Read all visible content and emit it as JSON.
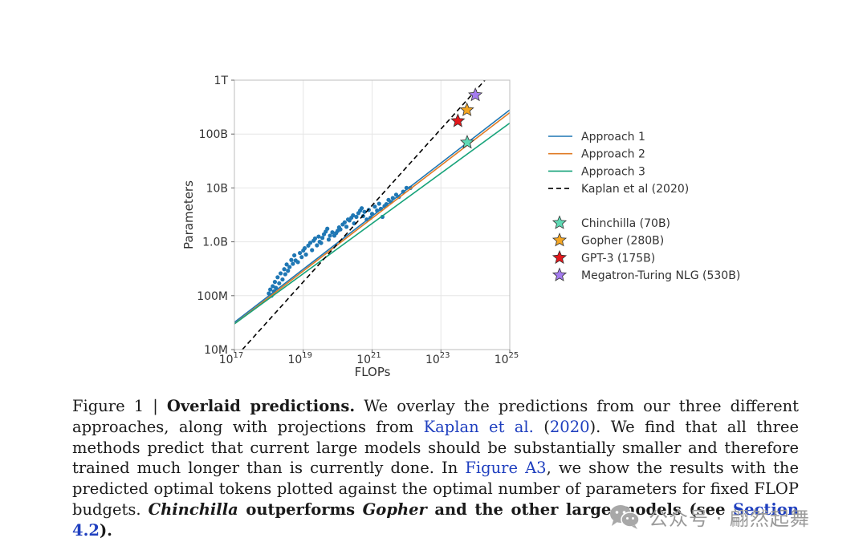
{
  "chart_data": {
    "type": "scatter",
    "xlabel": "FLOPs",
    "ylabel": "Parameters",
    "xscale": "log",
    "yscale": "log",
    "xlim": [
      1e+17,
      1e+25
    ],
    "ylim": [
      10000000.0,
      1000000000000.0
    ],
    "x_ticks": [
      {
        "value": 1e+17,
        "base": "10",
        "exp": "17"
      },
      {
        "value": 1e+19,
        "base": "10",
        "exp": "19"
      },
      {
        "value": 1e+21,
        "base": "10",
        "exp": "21"
      },
      {
        "value": 1e+23,
        "base": "10",
        "exp": "23"
      },
      {
        "value": 1e+25,
        "base": "10",
        "exp": "25"
      }
    ],
    "y_ticks": [
      {
        "value": 10000000.0,
        "label": "10M"
      },
      {
        "value": 100000000.0,
        "label": "100M"
      },
      {
        "value": 1000000000.0,
        "label": "1.0B"
      },
      {
        "value": 10000000000.0,
        "label": "10B"
      },
      {
        "value": 100000000000.0,
        "label": "100B"
      },
      {
        "value": 1000000000000.0,
        "label": "1T"
      }
    ],
    "grid": true,
    "legend_position": "right",
    "lines": [
      {
        "name": "Approach 1",
        "color": "#1f77b4",
        "dash": "solid",
        "x": [
          1e+17,
          1e+25
        ],
        "y": [
          32000000.0,
          280000000000.0
        ]
      },
      {
        "name": "Approach 2",
        "color": "#e07b24",
        "dash": "solid",
        "x": [
          1e+17,
          1e+25
        ],
        "y": [
          30000000.0,
          250000000000.0
        ]
      },
      {
        "name": "Approach 3",
        "color": "#17a37a",
        "dash": "solid",
        "x": [
          1e+17,
          1e+25
        ],
        "y": [
          30000000.0,
          160000000000.0
        ]
      },
      {
        "name": "Kaplan et al (2020)",
        "color": "#000000",
        "dash": "dashed",
        "x": [
          1.7e+17,
          4e+24
        ],
        "y": [
          10000000.0,
          1700000000000.0
        ]
      }
    ],
    "scatter_series": {
      "color": "#1f77b4",
      "x": [
        1e+18,
        1.1e+18,
        1.2e+18,
        1.3e+18,
        1.4e+18,
        1.5e+18,
        1.6e+18,
        1.8e+18,
        2e+18,
        2.2e+18,
        2.5e+18,
        2.8e+18,
        3e+18,
        3.3e+18,
        3.6e+18,
        4e+18,
        4.5e+18,
        5e+18,
        5.5e+18,
        6e+18,
        7e+18,
        8e+18,
        9e+18,
        1e+19,
        1.1e+19,
        1.2e+19,
        1.4e+19,
        1.6e+19,
        1.8e+19,
        2e+19,
        2.2e+19,
        2.5e+19,
        2.8e+19,
        3e+19,
        3.3e+19,
        3.6e+19,
        4e+19,
        4.5e+19,
        5e+19,
        5.5e+19,
        6e+19,
        7e+19,
        8e+19,
        9e+19,
        1e+20,
        1.1e+20,
        1.2e+20,
        1.4e+20,
        1.6e+20,
        1.8e+20,
        2e+20,
        2.2e+20,
        2.5e+20,
        2.8e+20,
        3e+20,
        3.5e+20,
        4e+20,
        4.5e+20,
        5e+20,
        5.5e+20,
        6e+20,
        7e+20,
        8e+20,
        9e+20,
        1e+21,
        1.2e+21,
        1.4e+21,
        1.6e+21,
        1.8e+21,
        2e+21,
        2.3e+21,
        2.6e+21,
        3e+21,
        3.5e+21,
        4e+21,
        5e+21,
        6e+21,
        8e+21,
        1e+22,
        1.3e+22
      ],
      "y": [
        110000000.0,
        130000000.0,
        100000000.0,
        150000000.0,
        120000000.0,
        180000000.0,
        140000000.0,
        220000000.0,
        170000000.0,
        260000000.0,
        200000000.0,
        310000000.0,
        250000000.0,
        380000000.0,
        290000000.0,
        340000000.0,
        460000000.0,
        390000000.0,
        560000000.0,
        450000000.0,
        420000000.0,
        620000000.0,
        520000000.0,
        690000000.0,
        760000000.0,
        580000000.0,
        850000000.0,
        960000000.0,
        700000000.0,
        1050000000.0,
        1150000000.0,
        860000000.0,
        1250000000.0,
        1000000000.0,
        950000000.0,
        1180000000.0,
        1380000000.0,
        1550000000.0,
        1750000000.0,
        1100000000.0,
        1300000000.0,
        1500000000.0,
        1300000000.0,
        1450000000.0,
        1600000000.0,
        1850000000.0,
        1700000000.0,
        2100000000.0,
        2300000000.0,
        1900000000.0,
        2600000000.0,
        2500000000.0,
        2800000000.0,
        3100000000.0,
        2200000000.0,
        2900000000.0,
        3400000000.0,
        3800000000.0,
        4200000000.0,
        3000000000.0,
        3600000000.0,
        2600000000.0,
        3900000000.0,
        2800000000.0,
        3300000000.0,
        4500000000.0,
        3800000000.0,
        5100000000.0,
        4100000000.0,
        2900000000.0,
        4600000000.0,
        5000000000.0,
        6000000000.0,
        5500000000.0,
        6500000000.0,
        7500000000.0,
        6800000000.0,
        8500000000.0,
        10000000000.0,
        10000000000.0
      ]
    },
    "markers": [
      {
        "name": "Chinchilla (70B)",
        "color": "#5fd9b4",
        "x": 5.8e+23,
        "y": 70000000000.0
      },
      {
        "name": "Gopher (280B)",
        "color": "#f4a623",
        "x": 5.7e+23,
        "y": 280000000000.0
      },
      {
        "name": "GPT-3 (175B)",
        "color": "#e3171b",
        "x": 3.1e+23,
        "y": 175000000000.0
      },
      {
        "name": "Megatron-Turing NLG (530B)",
        "color": "#a57cf0",
        "x": 1e+24,
        "y": 530000000000.0
      }
    ]
  },
  "caption": {
    "figure_label": "Figure 1 | ",
    "title": "Overlaid predictions.",
    "text_1": " We overlay the predictions from our three different approaches, along with projections from ",
    "link_kaplan": "Kaplan et al.",
    "text_paren_open": " (",
    "link_year": "2020",
    "text_2": "). We find that all three methods predict that current large models should be substantially smaller and therefore trained much longer than is currently done. In ",
    "link_figure": "Figure A3",
    "text_3": ", we show the results with the predicted optimal tokens plotted against the optimal number of parameters for fixed FLOP budgets. ",
    "bold_chinchilla": "Chinchilla",
    "bold_mid": " outperforms ",
    "bold_gopher": "Gopher",
    "bold_end": " and the other large models (see ",
    "link_section": "Section 4.2",
    "bold_close": ")."
  },
  "watermark": {
    "text": "公众号 · 翩然起舞",
    "icon": "wechat-icon"
  }
}
